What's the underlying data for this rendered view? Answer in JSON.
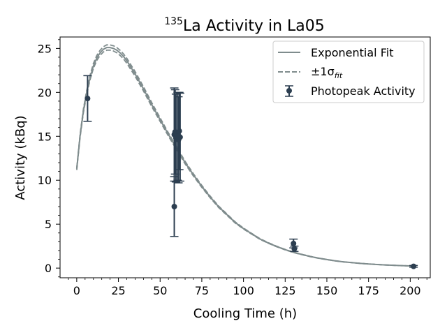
{
  "chart_data": {
    "type": "scatter",
    "title_superscript": "135",
    "title_main": "La Activity in La05",
    "xlabel": "Cooling Time (h)",
    "ylabel": "Activity (kBq)",
    "xlim": [
      -10,
      212
    ],
    "ylim": [
      -1.1,
      26.3
    ],
    "xticks": [
      0,
      25,
      50,
      75,
      100,
      125,
      150,
      175,
      200
    ],
    "yticks": [
      0,
      5,
      10,
      15,
      20,
      25
    ],
    "grid": false,
    "legend_position": "top-right",
    "legend": {
      "fit": "Exponential Fit",
      "band_prefix": "±1σ",
      "band_sub": "fit",
      "points": "Photopeak Activity"
    },
    "colors": {
      "fit": "#7f8c8d",
      "band": "#7f8c8d",
      "points": "#2c3e50"
    },
    "fit_curve": {
      "x": [
        0,
        2,
        4,
        6,
        8,
        10,
        12,
        14,
        16,
        18,
        20,
        22,
        24,
        26,
        28,
        30,
        35,
        40,
        45,
        50,
        55,
        60,
        65,
        70,
        75,
        80,
        85,
        90,
        95,
        100,
        105,
        110,
        115,
        120,
        125,
        130,
        135,
        140,
        145,
        150,
        155,
        160,
        165,
        170,
        175,
        180,
        185,
        190,
        195,
        200,
        202
      ],
      "y": [
        11.3,
        15.0,
        17.9,
        20.0,
        21.7,
        23.0,
        23.9,
        24.5,
        24.9,
        25.1,
        25.1,
        25.0,
        24.8,
        24.5,
        24.1,
        23.6,
        22.1,
        20.4,
        18.6,
        16.9,
        15.2,
        13.6,
        12.0,
        10.6,
        9.3,
        8.1,
        7.0,
        6.1,
        5.2,
        4.5,
        3.9,
        3.3,
        2.85,
        2.45,
        2.1,
        1.8,
        1.55,
        1.32,
        1.13,
        0.97,
        0.83,
        0.71,
        0.62,
        0.54,
        0.47,
        0.41,
        0.36,
        0.32,
        0.28,
        0.25,
        0.24
      ]
    },
    "points": [
      {
        "x": 6.5,
        "y": 19.3,
        "err": 2.6
      },
      {
        "x": 58.5,
        "y": 15.2,
        "err": 5.3
      },
      {
        "x": 58.5,
        "y": 7.0,
        "err": 3.4
      },
      {
        "x": 59.0,
        "y": 15.5,
        "err": 4.8
      },
      {
        "x": 59.5,
        "y": 14.8,
        "err": 5.0
      },
      {
        "x": 60.5,
        "y": 15.0,
        "err": 5.0
      },
      {
        "x": 61.0,
        "y": 14.6,
        "err": 4.9
      },
      {
        "x": 61.5,
        "y": 15.6,
        "err": 4.4
      },
      {
        "x": 62.0,
        "y": 14.9,
        "err": 5.0
      },
      {
        "x": 130.0,
        "y": 2.8,
        "err": 0.5
      },
      {
        "x": 130.5,
        "y": 2.2,
        "err": 0.3
      },
      {
        "x": 202.0,
        "y": 0.2,
        "err": 0.1
      }
    ]
  }
}
